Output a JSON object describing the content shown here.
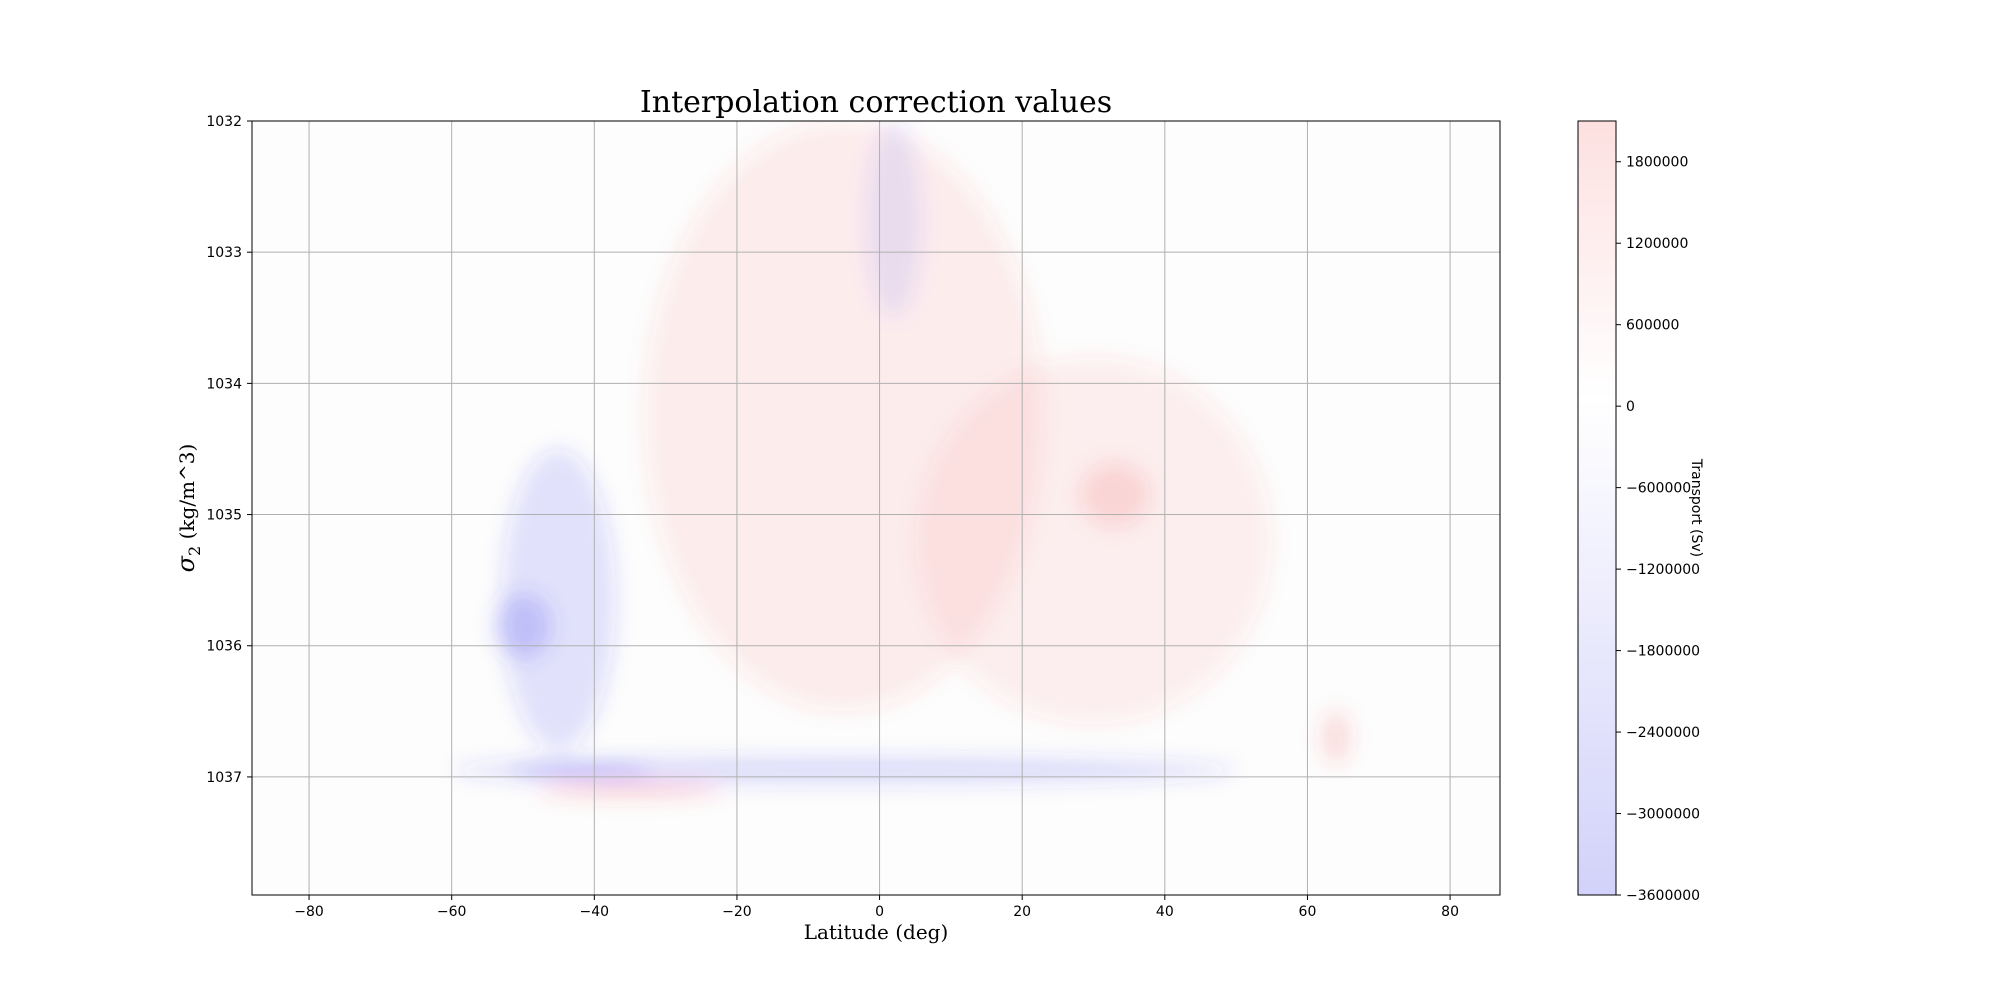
{
  "chart_data": {
    "type": "heatmap",
    "title": "Interpolation correction values",
    "xlabel": "Latitude (deg)",
    "ylabel_symbol": "σ",
    "ylabel_subscript": "2",
    "ylabel_units": " (kg/m^3)",
    "xlim": [
      -88,
      87
    ],
    "ylim": [
      1037.9,
      1032
    ],
    "y_inverted": true,
    "x_ticks": [
      -80,
      -60,
      -40,
      -20,
      0,
      20,
      40,
      60,
      80
    ],
    "x_tick_labels": [
      "−80",
      "−60",
      "−40",
      "−20",
      "0",
      "20",
      "40",
      "60",
      "80"
    ],
    "y_ticks": [
      1032,
      1033,
      1034,
      1035,
      1036,
      1037
    ],
    "y_tick_labels": [
      "1032",
      "1033",
      "1034",
      "1035",
      "1036",
      "1037"
    ],
    "grid": true,
    "colormap": "bwr (low opacity)",
    "colors": {
      "negative": "#3b3bf0",
      "positive": "#f03b3b",
      "zero": "#ffffff"
    },
    "colorbar": {
      "label": "Transport (Sv)",
      "min": -3600000,
      "max": 2100000,
      "ticks": [
        1800000,
        1200000,
        600000,
        0,
        -600000,
        -1200000,
        -1800000,
        -2400000,
        -3000000,
        -3600000
      ],
      "tick_labels": [
        "1800000",
        "1200000",
        "600000",
        "0",
        "−600000",
        "−1200000",
        "−1800000",
        "−2400000",
        "−3000000",
        "−3600000"
      ],
      "placement": "right"
    },
    "features": [
      {
        "kind": "positive",
        "lat_center": -5,
        "lat_halfwidth": 28,
        "sigma_top": 1032.0,
        "sigma_bottom": 1036.5,
        "value": 450000
      },
      {
        "kind": "positive",
        "lat_center": 30,
        "lat_halfwidth": 25,
        "sigma_top": 1033.8,
        "sigma_bottom": 1036.6,
        "value": 400000
      },
      {
        "kind": "positive",
        "lat_center": 33,
        "lat_halfwidth": 5,
        "sigma_top": 1034.6,
        "sigma_bottom": 1035.1,
        "value": 700000
      },
      {
        "kind": "negative",
        "lat_center": 2,
        "lat_halfwidth": 4,
        "sigma_top": 1032.0,
        "sigma_bottom": 1033.5,
        "value": -500000
      },
      {
        "kind": "negative",
        "lat_center": -45,
        "lat_halfwidth": 8,
        "sigma_top": 1034.5,
        "sigma_bottom": 1036.8,
        "value": -700000
      },
      {
        "kind": "negative",
        "lat_center": -50,
        "lat_halfwidth": 4,
        "sigma_top": 1035.6,
        "sigma_bottom": 1036.1,
        "value": -1100000
      },
      {
        "kind": "negative",
        "lat_center": -5,
        "lat_halfwidth": 55,
        "sigma_top": 1036.85,
        "sigma_bottom": 1037.05,
        "value": -900000
      },
      {
        "kind": "negative",
        "lat_center": -42,
        "lat_halfwidth": 10,
        "sigma_top": 1036.9,
        "sigma_bottom": 1037.0,
        "value": -1300000
      },
      {
        "kind": "positive",
        "lat_center": -35,
        "lat_halfwidth": 13,
        "sigma_top": 1037.05,
        "sigma_bottom": 1037.15,
        "value": 1300000
      },
      {
        "kind": "positive",
        "lat_center": 64,
        "lat_halfwidth": 2,
        "sigma_top": 1036.5,
        "sigma_bottom": 1036.9,
        "value": 900000
      }
    ]
  }
}
